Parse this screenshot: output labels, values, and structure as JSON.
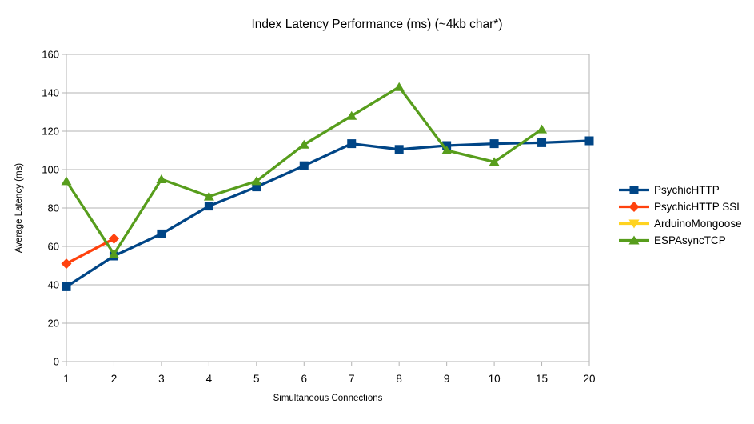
{
  "chart_data": {
    "type": "line",
    "title": "Index Latency Performance (ms) (~4kb char*)",
    "xlabel": "Simultaneous Connections",
    "ylabel": "Average Latency (ms)",
    "categories": [
      "1",
      "2",
      "3",
      "4",
      "5",
      "6",
      "7",
      "8",
      "9",
      "10",
      "15",
      "20"
    ],
    "ylim": [
      0,
      160
    ],
    "ytick_step": 20,
    "grid": "horizontal",
    "legend_position": "right",
    "series": [
      {
        "name": "PsychicHTTP",
        "color": "#004586",
        "marker": "square",
        "values": [
          39,
          55,
          66.5,
          81,
          91,
          102,
          113.5,
          110.5,
          112.5,
          113.5,
          114,
          115
        ]
      },
      {
        "name": "PsychicHTTP SSL",
        "color": "#ff420e",
        "marker": "diamond",
        "values": [
          51,
          64,
          null,
          null,
          null,
          null,
          null,
          null,
          null,
          null,
          null,
          null
        ]
      },
      {
        "name": "ArduinoMongoose",
        "color": "#ffd320",
        "marker": "triangle-down",
        "values": [
          null,
          null,
          null,
          null,
          null,
          null,
          null,
          null,
          null,
          null,
          null,
          null
        ]
      },
      {
        "name": "ESPAsyncTCP",
        "color": "#579d1c",
        "marker": "triangle-up",
        "values": [
          94,
          56,
          95,
          86,
          94,
          113,
          128,
          143,
          110,
          104,
          121,
          null
        ]
      }
    ],
    "colors": {
      "grid": "#b3b3b3",
      "axis": "#b3b3b3",
      "text": "#000000",
      "background": "#ffffff"
    }
  }
}
